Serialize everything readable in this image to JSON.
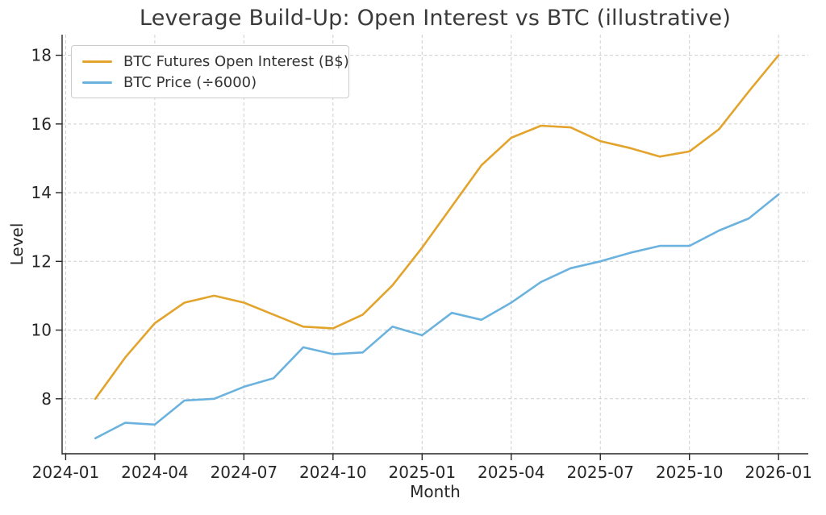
{
  "chart_data": {
    "type": "line",
    "title": "Leverage Build-Up: Open Interest vs BTC (illustrative)",
    "xlabel": "Month",
    "ylabel": "Level",
    "grid": true,
    "legend_position": "upper left",
    "x": [
      "2024-02",
      "2024-03",
      "2024-04",
      "2024-05",
      "2024-06",
      "2024-07",
      "2024-08",
      "2024-09",
      "2024-10",
      "2024-11",
      "2024-12",
      "2025-01",
      "2025-02",
      "2025-03",
      "2025-04",
      "2025-05",
      "2025-06",
      "2025-07",
      "2025-08",
      "2025-09",
      "2025-10",
      "2025-11",
      "2025-12",
      "2026-01"
    ],
    "series": [
      {
        "name": "BTC Futures Open Interest (B$)",
        "color": "#E2A42C",
        "values": [
          8.0,
          9.2,
          10.2,
          10.8,
          11.0,
          10.8,
          10.45,
          10.1,
          10.05,
          10.45,
          11.3,
          12.4,
          13.6,
          14.8,
          15.6,
          15.95,
          15.9,
          15.5,
          15.3,
          15.05,
          15.2,
          15.85,
          16.95,
          18.0
        ]
      },
      {
        "name": "BTC Price (÷6000)",
        "color": "#6BB3DE",
        "values": [
          6.85,
          7.3,
          7.25,
          7.95,
          8.0,
          8.35,
          8.6,
          9.5,
          9.3,
          9.35,
          10.1,
          9.85,
          10.5,
          10.3,
          10.8,
          11.4,
          11.8,
          12.0,
          12.25,
          12.45,
          12.45,
          12.9,
          13.25,
          13.95
        ]
      }
    ],
    "x_ticks": [
      "2024-01",
      "2024-04",
      "2024-07",
      "2024-10",
      "2025-01",
      "2025-04",
      "2025-07",
      "2025-10",
      "2026-01"
    ],
    "y_ticks": [
      8,
      10,
      12,
      14,
      16,
      18
    ],
    "xlim_month_index": [
      -0.12,
      25.0
    ],
    "ylim": [
      6.4,
      18.6
    ]
  }
}
